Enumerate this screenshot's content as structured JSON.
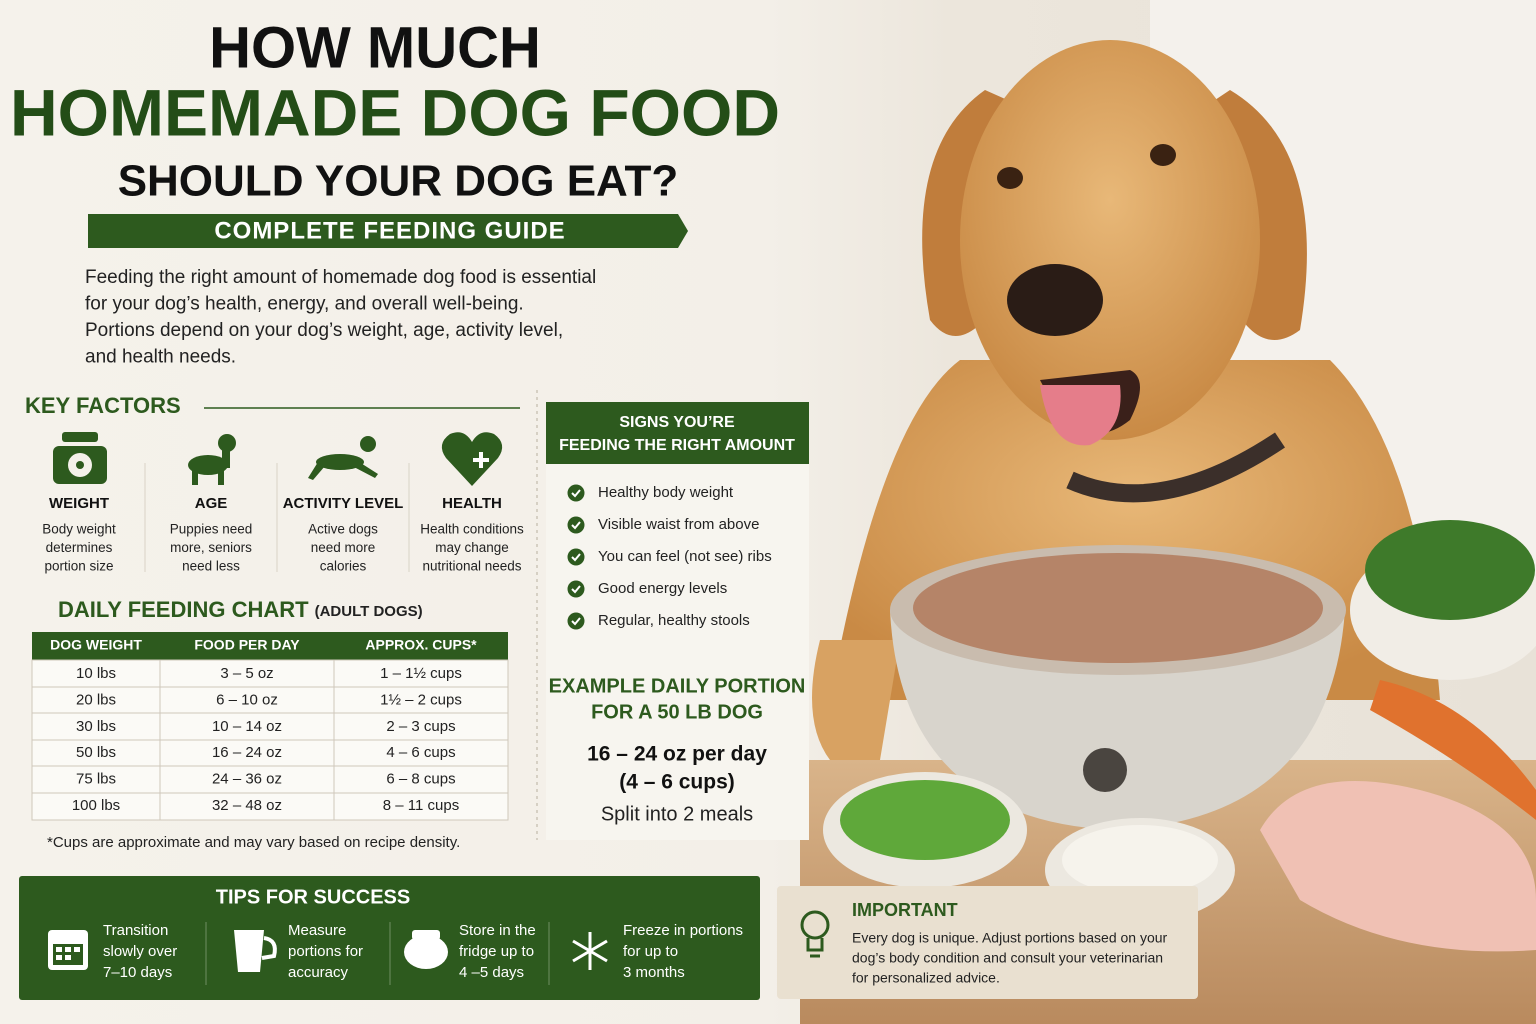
{
  "header": {
    "line1": "HOW MUCH",
    "line2": "HOMEMADE DOG FOOD",
    "line3": "SHOULD YOUR DOG EAT?",
    "banner": "COMPLETE FEEDING GUIDE"
  },
  "intro": [
    "Feeding the right amount of homemade dog food is essential",
    "for your dog’s health, energy, and overall well-being.",
    "Portions depend on your dog’s weight, age, activity level,",
    "and health needs."
  ],
  "key_factors": {
    "title": "KEY FACTORS",
    "items": [
      {
        "title": "WEIGHT",
        "text": [
          "Body weight",
          "determines",
          "portion size"
        ]
      },
      {
        "title": "AGE",
        "text": [
          "Puppies need",
          "more, seniors",
          "need less"
        ]
      },
      {
        "title": "ACTIVITY LEVEL",
        "text": [
          "Active dogs",
          "need more",
          "calories"
        ]
      },
      {
        "title": "HEALTH",
        "text": [
          "Health conditions",
          "may change",
          "nutritional needs"
        ]
      }
    ]
  },
  "feeding_chart": {
    "title": "DAILY FEEDING CHART",
    "subtitle": "(ADULT DOGS)",
    "columns": [
      "DOG WEIGHT",
      "FOOD PER DAY",
      "APPROX. CUPS*"
    ],
    "rows": [
      [
        "10 lbs",
        "3 – 5 oz",
        "1 – 1½ cups"
      ],
      [
        "20 lbs",
        "6 – 10 oz",
        "1½ – 2 cups"
      ],
      [
        "30 lbs",
        "10 – 14 oz",
        "2 – 3 cups"
      ],
      [
        "50 lbs",
        "16 – 24 oz",
        "4 – 6 cups"
      ],
      [
        "75 lbs",
        "24 – 36 oz",
        "6 – 8 cups"
      ],
      [
        "100 lbs",
        "32 – 48 oz",
        "8 – 11 cups"
      ]
    ],
    "note": "*Cups are approximate and may vary based on recipe density."
  },
  "signs": {
    "title": [
      "SIGNS YOU’RE",
      "FEEDING THE RIGHT AMOUNT"
    ],
    "items": [
      "Healthy body weight",
      "Visible waist from above",
      "You can feel (not see) ribs",
      "Good energy levels",
      "Regular, healthy stools"
    ]
  },
  "example": {
    "title": [
      "EXAMPLE DAILY PORTION",
      "FOR A 50 LB DOG"
    ],
    "amount": [
      "16 – 24 oz per day",
      "(4 – 6 cups)"
    ],
    "note": "Split into 2 meals"
  },
  "tips": {
    "title": "TIPS FOR SUCCESS",
    "items": [
      [
        "Transition",
        "slowly over",
        "7–10 days"
      ],
      [
        "Measure",
        "portions for",
        "accuracy"
      ],
      [
        "Store in the",
        "fridge up to",
        "4 –5 days"
      ],
      [
        "Freeze in portions",
        "for up to",
        "3 months"
      ]
    ]
  },
  "important": {
    "title": "IMPORTANT",
    "text": [
      "Every dog is unique. Adjust portions based on your",
      "dog’s body condition and consult your veterinarian",
      "for personalized advice."
    ]
  }
}
